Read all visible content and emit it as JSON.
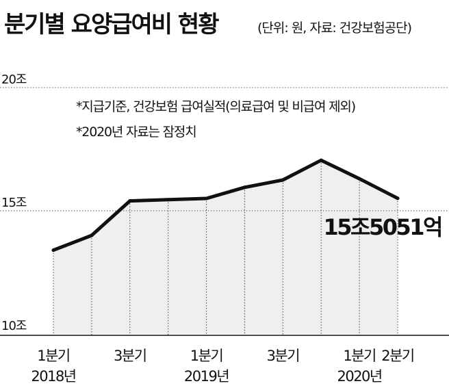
{
  "header": {
    "title": "분기별 요양급여비 현황",
    "unit_note": "(단위: 원, 자료: 건강보험공단)"
  },
  "chart_data": {
    "type": "area",
    "y_ticks": [
      {
        "value": 20,
        "label": "20조"
      },
      {
        "value": 15,
        "label": "15조"
      },
      {
        "value": 10,
        "label": "10조"
      }
    ],
    "ylim": [
      10,
      20
    ],
    "x": [
      "2018-Q1",
      "2018-Q2",
      "2018-Q3",
      "2018-Q4",
      "2019-Q1",
      "2019-Q2",
      "2019-Q3",
      "2019-Q4",
      "2020-Q1",
      "2020-Q2"
    ],
    "values": [
      13.4,
      14.0,
      15.4,
      15.45,
      15.5,
      15.95,
      16.25,
      17.05,
      16.3,
      15.5051
    ],
    "x_tick_labels": [
      {
        "index": 0,
        "quarter": "1분기",
        "year": "2018년"
      },
      {
        "index": 2,
        "quarter": "3분기",
        "year": ""
      },
      {
        "index": 4,
        "quarter": "1분기",
        "year": "2019년"
      },
      {
        "index": 6,
        "quarter": "3분기",
        "year": ""
      },
      {
        "index": 8,
        "quarter": "1분기",
        "year": "2020년"
      },
      {
        "index": 9,
        "quarter": "2분기",
        "year": ""
      }
    ],
    "annotations": [
      "*지급기준, 건강보험 급여실적(의료급여 및 비급여 제외)",
      "*2020년 자료는 잠정치"
    ],
    "end_label": "15조5051억",
    "grid": "dotted lines at 20조 and 15조",
    "colors": {
      "line": "#111111",
      "area": "#efefef",
      "text": "#111111"
    }
  }
}
